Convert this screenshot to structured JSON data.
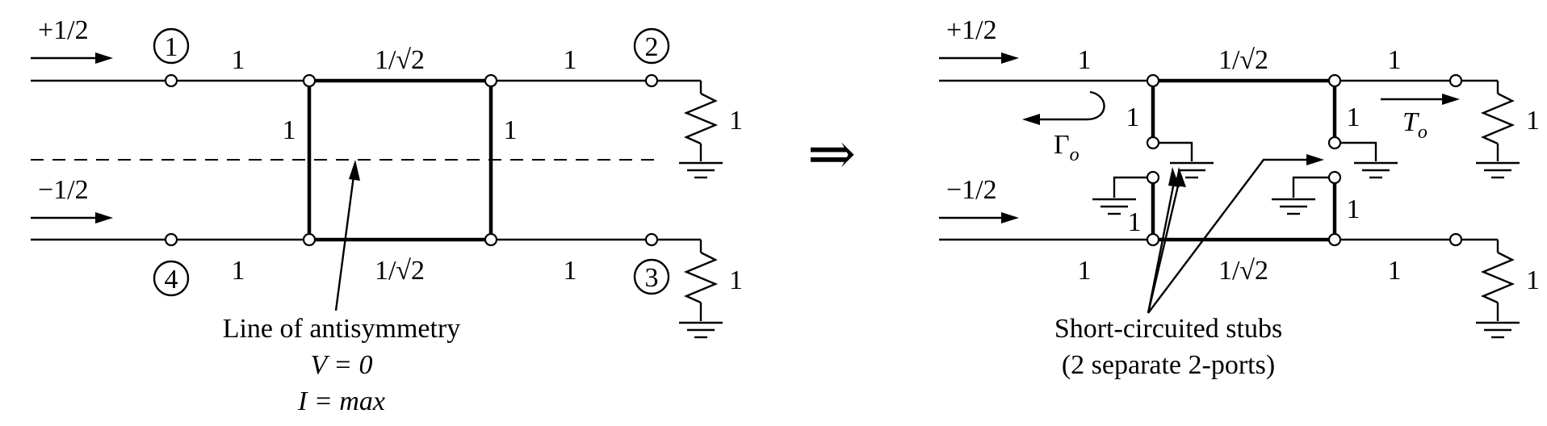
{
  "left": {
    "input_top": "+1/2",
    "input_bottom": "−1/2",
    "port1": "1",
    "port2": "2",
    "port3": "3",
    "port4": "4",
    "line_top_left": "1",
    "line_top_right": "1",
    "line_bot_left": "1",
    "line_bot_right": "1",
    "series_top": "1/√2",
    "series_bot": "1/√2",
    "shunt_left": "1",
    "shunt_right": "1",
    "load_top": "1",
    "load_bot": "1",
    "caption_line1": "Line of antisymmetry",
    "caption_line2": "V = 0",
    "caption_line3": "I = max"
  },
  "arrow_symbol": "⇒",
  "right": {
    "input_top": "+1/2",
    "input_bottom": "−1/2",
    "line_top_left": "1",
    "line_top_right": "1",
    "line_bot_left": "1",
    "line_bot_right": "1",
    "series_top": "1/√2",
    "series_bot": "1/√2",
    "stub_top_left": "1",
    "stub_top_right": "1",
    "stub_bot_left": "1",
    "stub_bot_right": "1",
    "load_top": "1",
    "load_bot": "1",
    "gamma": "Γ",
    "gamma_sub": "o",
    "trans": "T",
    "trans_sub": "o",
    "caption_line1": "Short-circuited stubs",
    "caption_line2": "(2 separate 2-ports)"
  }
}
